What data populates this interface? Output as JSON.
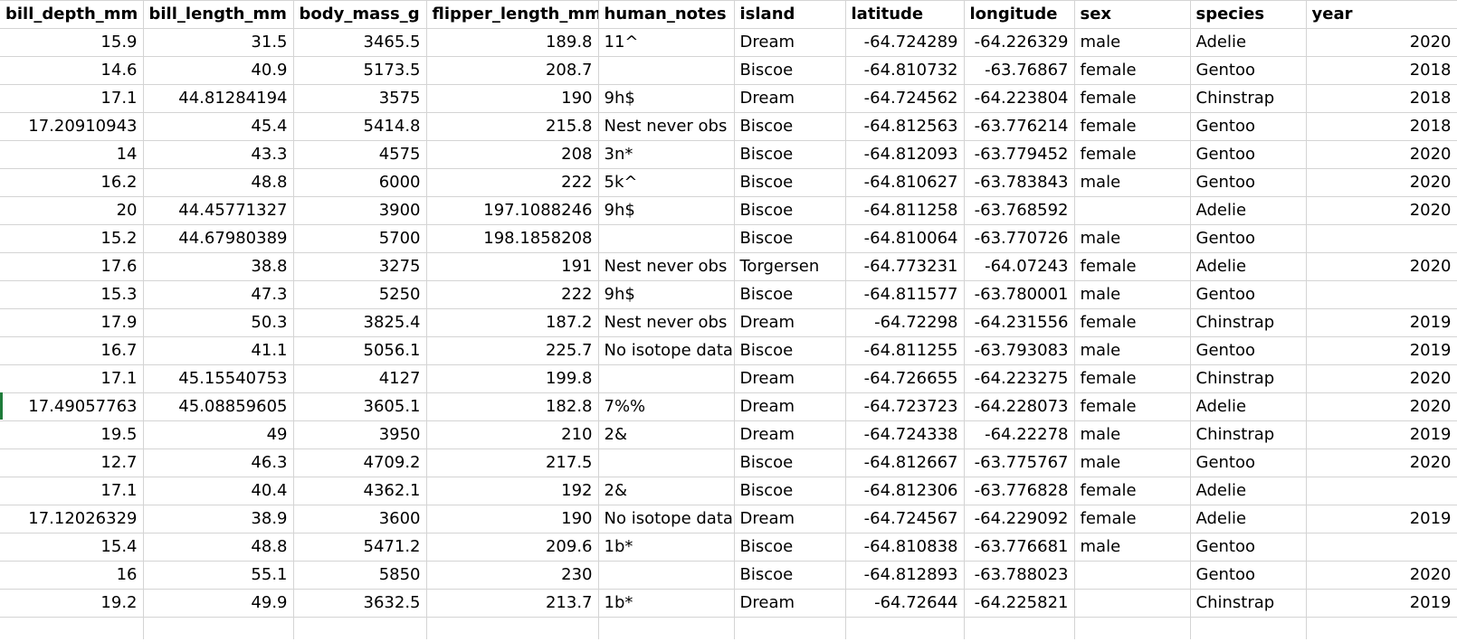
{
  "columns": [
    {
      "label": "bill_depth_mm",
      "align": "num"
    },
    {
      "label": "bill_length_mm",
      "align": "num"
    },
    {
      "label": "body_mass_g",
      "align": "num"
    },
    {
      "label": "flipper_length_mm",
      "align": "num"
    },
    {
      "label": "human_notes",
      "align": "txt"
    },
    {
      "label": "island",
      "align": "txt"
    },
    {
      "label": "latitude",
      "align": "num"
    },
    {
      "label": "longitude",
      "align": "num"
    },
    {
      "label": "sex",
      "align": "txt"
    },
    {
      "label": "species",
      "align": "txt"
    },
    {
      "label": "year",
      "align": "num"
    }
  ],
  "rows": [
    [
      "15.9",
      "31.5",
      "3465.5",
      "189.8",
      "11^",
      "Dream",
      "-64.724289",
      "-64.226329",
      "male",
      "Adelie",
      "2020"
    ],
    [
      "14.6",
      "40.9",
      "5173.5",
      "208.7",
      "",
      "Biscoe",
      "-64.810732",
      "-63.76867",
      "female",
      "Gentoo",
      "2018"
    ],
    [
      "17.1",
      "44.81284194",
      "3575",
      "190",
      "9h$",
      "Dream",
      "-64.724562",
      "-64.223804",
      "female",
      "Chinstrap",
      "2018"
    ],
    [
      "17.20910943",
      "45.4",
      "5414.8",
      "215.8",
      "Nest never obs",
      "Biscoe",
      "-64.812563",
      "-63.776214",
      "female",
      "Gentoo",
      "2018"
    ],
    [
      "14",
      "43.3",
      "4575",
      "208",
      "3n*",
      "Biscoe",
      "-64.812093",
      "-63.779452",
      "female",
      "Gentoo",
      "2020"
    ],
    [
      "16.2",
      "48.8",
      "6000",
      "222",
      "5k^",
      "Biscoe",
      "-64.810627",
      "-63.783843",
      "male",
      "Gentoo",
      "2020"
    ],
    [
      "20",
      "44.45771327",
      "3900",
      "197.1088246",
      "9h$",
      "Biscoe",
      "-64.811258",
      "-63.768592",
      "",
      "Adelie",
      "2020"
    ],
    [
      "15.2",
      "44.67980389",
      "5700",
      "198.1858208",
      "",
      "Biscoe",
      "-64.810064",
      "-63.770726",
      "male",
      "Gentoo",
      ""
    ],
    [
      "17.6",
      "38.8",
      "3275",
      "191",
      "Nest never obs",
      "Torgersen",
      "-64.773231",
      "-64.07243",
      "female",
      "Adelie",
      "2020"
    ],
    [
      "15.3",
      "47.3",
      "5250",
      "222",
      "9h$",
      "Biscoe",
      "-64.811577",
      "-63.780001",
      "male",
      "Gentoo",
      ""
    ],
    [
      "17.9",
      "50.3",
      "3825.4",
      "187.2",
      "Nest never obs",
      "Dream",
      "-64.72298",
      "-64.231556",
      "female",
      "Chinstrap",
      "2019"
    ],
    [
      "16.7",
      "41.1",
      "5056.1",
      "225.7",
      "No isotope data",
      "Biscoe",
      "-64.811255",
      "-63.793083",
      "male",
      "Gentoo",
      "2019"
    ],
    [
      "17.1",
      "45.15540753",
      "4127",
      "199.8",
      "",
      "Dream",
      "-64.726655",
      "-64.223275",
      "female",
      "Chinstrap",
      "2020"
    ],
    [
      "17.49057763",
      "45.08859605",
      "3605.1",
      "182.8",
      "7%%",
      "Dream",
      "-64.723723",
      "-64.228073",
      "female",
      "Adelie",
      "2020"
    ],
    [
      "19.5",
      "49",
      "3950",
      "210",
      "2&",
      "Dream",
      "-64.724338",
      "-64.22278",
      "male",
      "Chinstrap",
      "2019"
    ],
    [
      "12.7",
      "46.3",
      "4709.2",
      "217.5",
      "",
      "Biscoe",
      "-64.812667",
      "-63.775767",
      "male",
      "Gentoo",
      "2020"
    ],
    [
      "17.1",
      "40.4",
      "4362.1",
      "192",
      "2&",
      "Biscoe",
      "-64.812306",
      "-63.776828",
      "female",
      "Adelie",
      ""
    ],
    [
      "17.12026329",
      "38.9",
      "3600",
      "190",
      "No isotope data",
      "Dream",
      "-64.724567",
      "-64.229092",
      "female",
      "Adelie",
      "2019"
    ],
    [
      "15.4",
      "48.8",
      "5471.2",
      "209.6",
      "1b*",
      "Biscoe",
      "-64.810838",
      "-63.776681",
      "male",
      "Gentoo",
      ""
    ],
    [
      "16",
      "55.1",
      "5850",
      "230",
      "",
      "Biscoe",
      "-64.812893",
      "-63.788023",
      "",
      "Gentoo",
      "2020"
    ],
    [
      "19.2",
      "49.9",
      "3632.5",
      "213.7",
      "1b*",
      "Dream",
      "-64.72644",
      "-64.225821",
      "",
      "Chinstrap",
      "2019"
    ]
  ],
  "colors": {
    "gridline": "#d4d4d4",
    "selection_marker": "#1e7b3a",
    "background": "#ffffff",
    "text": "#000000"
  }
}
